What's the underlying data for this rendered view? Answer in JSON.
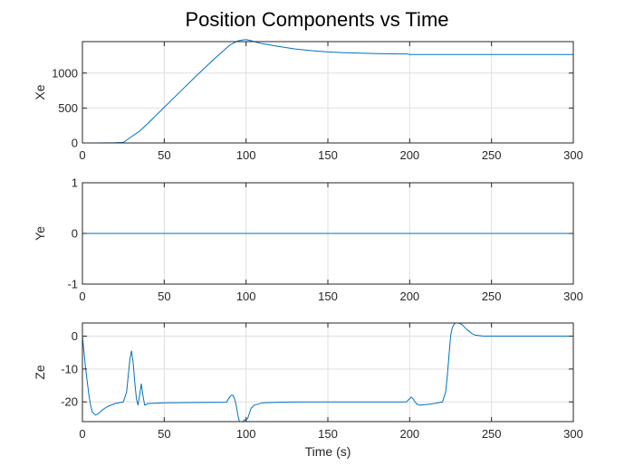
{
  "figure": {
    "title": "Position Components vs Time"
  },
  "colors": {
    "line": "#0072BD",
    "grid": "#dfdfdf",
    "axes": "#262626",
    "background": "#ffffff"
  },
  "chart_data": [
    {
      "type": "line",
      "ylabel": "Xe",
      "xlabel": "",
      "xlim": [
        0,
        300
      ],
      "ylim": [
        0,
        1450
      ],
      "xticks": [
        0,
        50,
        100,
        150,
        200,
        250,
        300
      ],
      "yticks": [
        0,
        500,
        1000
      ],
      "grid": true,
      "series": [
        {
          "x": [
            0,
            10,
            20,
            25,
            27,
            30,
            35,
            40,
            50,
            60,
            70,
            80,
            90,
            95,
            98,
            100,
            102,
            105,
            110,
            120,
            130,
            140,
            150,
            160,
            170,
            180,
            190,
            199,
            200,
            220,
            250,
            280,
            300
          ],
          "y": [
            0,
            0,
            2,
            8,
            40,
            90,
            170,
            280,
            510,
            740,
            970,
            1190,
            1400,
            1460,
            1475,
            1478,
            1470,
            1450,
            1420,
            1380,
            1345,
            1320,
            1303,
            1292,
            1284,
            1279,
            1275,
            1272,
            1265,
            1265,
            1265,
            1265,
            1265
          ]
        }
      ]
    },
    {
      "type": "line",
      "ylabel": "Ye",
      "xlabel": "",
      "xlim": [
        0,
        300
      ],
      "ylim": [
        -1,
        1
      ],
      "xticks": [
        0,
        50,
        100,
        150,
        200,
        250,
        300
      ],
      "yticks": [
        -1,
        0,
        1
      ],
      "grid": true,
      "series": [
        {
          "x": [
            0,
            300
          ],
          "y": [
            0,
            0
          ]
        }
      ]
    },
    {
      "type": "line",
      "ylabel": "Ze",
      "xlabel": "Time (s)",
      "xlim": [
        0,
        300
      ],
      "ylim": [
        -26,
        4
      ],
      "xticks": [
        0,
        50,
        100,
        150,
        200,
        250,
        300
      ],
      "yticks": [
        -20,
        -10,
        0
      ],
      "grid": true,
      "series": [
        {
          "x": [
            0,
            1,
            2,
            3,
            4,
            5,
            6,
            8,
            10,
            12,
            15,
            20,
            25,
            27,
            28,
            29,
            30,
            31,
            32,
            33,
            34,
            35,
            36,
            37,
            38,
            40,
            50,
            70,
            88,
            90,
            91,
            92,
            93,
            94,
            95,
            96,
            97,
            98,
            99,
            100,
            101,
            102,
            103,
            105,
            110,
            120,
            130,
            150,
            180,
            198,
            200,
            201,
            202,
            204,
            206,
            210,
            215,
            220,
            222,
            223,
            224,
            225,
            226,
            227,
            228,
            230,
            232,
            235,
            238,
            240,
            245,
            250,
            260,
            280,
            300
          ],
          "y": [
            0,
            -5,
            -10,
            -14,
            -18,
            -21,
            -23,
            -24,
            -23.5,
            -22.5,
            -21.5,
            -20.5,
            -20,
            -17,
            -12,
            -7,
            -4.5,
            -8,
            -14,
            -19,
            -21,
            -18,
            -14.5,
            -18,
            -21,
            -20.5,
            -20.3,
            -20.2,
            -20.1,
            -18.5,
            -18,
            -18,
            -19,
            -21,
            -24,
            -26,
            -26,
            -26,
            -25.5,
            -25.5,
            -25,
            -23.5,
            -22,
            -21,
            -20.3,
            -20.1,
            -20,
            -20,
            -20,
            -20,
            -19,
            -18.5,
            -19,
            -20.5,
            -21,
            -20.8,
            -20.5,
            -20,
            -17,
            -12,
            -6,
            0,
            2.5,
            3.5,
            4,
            4,
            3.5,
            2,
            0.8,
            0.3,
            0,
            0,
            0,
            0,
            0
          ]
        }
      ]
    }
  ]
}
